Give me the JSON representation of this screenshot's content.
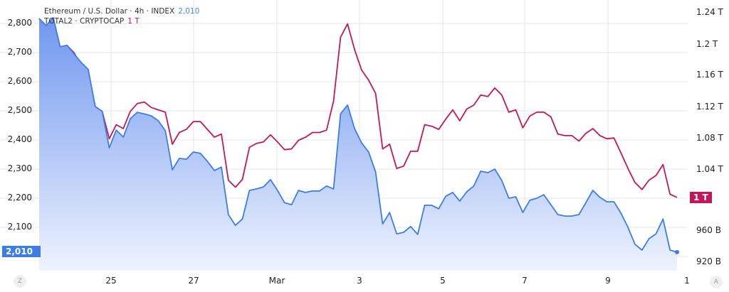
{
  "legend": {
    "series1_label": "Ethereum / U.S. Dollar · 4h · INDEX",
    "series1_value": "2,010",
    "series2_label": "TOTAL2 · CRYPTOCAP",
    "series2_value": "1 T"
  },
  "price_tags": {
    "left": "2,010",
    "right": "1 T"
  },
  "buttons": {
    "left": "Z",
    "right": "A"
  },
  "chart_data": {
    "type": "line",
    "grid": true,
    "x_ticks": [
      "25",
      "27",
      "Mar",
      "3",
      "5",
      "7",
      "9",
      "1"
    ],
    "left_axis": {
      "ticks": [
        "2,800",
        "2,700",
        "2,600",
        "2,500",
        "2,400",
        "2,300",
        "2,200",
        "2,100"
      ],
      "ylim": [
        1990,
        2830
      ]
    },
    "right_axis": {
      "ticks": [
        "1.24 T",
        "1.2 T",
        "1.16 T",
        "1.12 T",
        "1.08 T",
        "1.04 T",
        "960 B",
        "920 B"
      ],
      "unit": "B"
    },
    "series": [
      {
        "name": "Ethereum / U.S. Dollar · 4h · INDEX",
        "axis": "left",
        "color": "#3d7ee6",
        "area": true,
        "values": [
          2812,
          2788,
          2815,
          2715,
          2720,
          2690,
          2661,
          2637,
          2510,
          2493,
          2368,
          2429,
          2405,
          2468,
          2490,
          2485,
          2478,
          2461,
          2427,
          2293,
          2332,
          2329,
          2354,
          2349,
          2322,
          2290,
          2302,
          2139,
          2102,
          2124,
          2222,
          2227,
          2234,
          2259,
          2222,
          2180,
          2173,
          2222,
          2215,
          2220,
          2220,
          2237,
          2227,
          2485,
          2515,
          2434,
          2385,
          2354,
          2285,
          2107,
          2146,
          2073,
          2078,
          2098,
          2071,
          2171,
          2171,
          2159,
          2202,
          2215,
          2185,
          2217,
          2237,
          2288,
          2283,
          2295,
          2256,
          2195,
          2200,
          2146,
          2188,
          2195,
          2207,
          2173,
          2139,
          2134,
          2134,
          2139,
          2180,
          2222,
          2198,
          2183,
          2183,
          2144,
          2095,
          2037,
          2017,
          2056,
          2073,
          2124,
          2017,
          2010
        ]
      },
      {
        "name": "TOTAL2 · CRYPTOCAP",
        "axis": "right",
        "color": "#c2185b",
        "area": false,
        "values": [
          1231,
          1215,
          1232,
          1194,
          1196,
          1187,
          1170,
          1161,
          1118,
          1112,
          1077,
          1095,
          1090,
          1112,
          1122,
          1124,
          1117,
          1114,
          1111,
          1070,
          1085,
          1089,
          1099,
          1099,
          1089,
          1079,
          1083,
          1024,
          1015,
          1025,
          1066,
          1071,
          1073,
          1082,
          1073,
          1063,
          1064,
          1075,
          1079,
          1085,
          1085,
          1088,
          1125,
          1207,
          1224,
          1191,
          1165,
          1152,
          1135,
          1064,
          1070,
          1039,
          1042,
          1061,
          1061,
          1095,
          1093,
          1089,
          1102,
          1114,
          1100,
          1115,
          1120,
          1133,
          1131,
          1142,
          1133,
          1111,
          1114,
          1091,
          1106,
          1111,
          1111,
          1105,
          1083,
          1081,
          1081,
          1074,
          1084,
          1090,
          1081,
          1077,
          1078,
          1059,
          1039,
          1021,
          1012,
          1024,
          1030,
          1044,
          1006,
          1002
        ]
      }
    ]
  }
}
